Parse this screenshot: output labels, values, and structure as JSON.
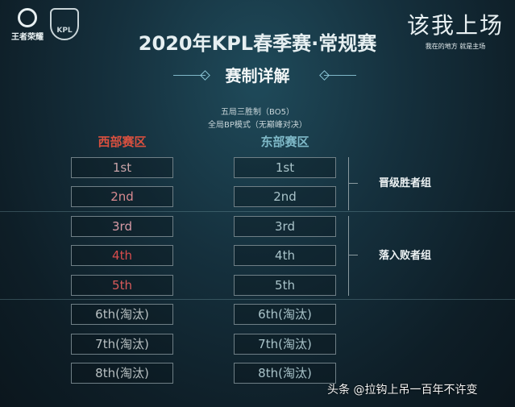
{
  "logos": {
    "honor_of_kings": "王者荣耀",
    "kpl": "KPL"
  },
  "slogan": {
    "main": "该我上场",
    "sub": "我在的地方 就是主场"
  },
  "title": "2020年KPL春季赛·常规赛",
  "subtitle": "赛制详解",
  "rules": [
    "五局三胜制（BO5）",
    "全局BP模式（无巅峰对决）"
  ],
  "west": {
    "header": "西部赛区",
    "color": "#d9503f",
    "ranks": [
      "1st",
      "2nd",
      "3rd",
      "4th",
      "5th",
      "6th(淘汰)",
      "7th(淘汰)",
      "8th(淘汰)"
    ],
    "rank_colors": [
      "#c8a4a8",
      "#d98a90",
      "#d79aa5",
      "#d84c4c",
      "#d85a5a",
      "#b8c0c2",
      "#b8c0c2",
      "#b8c0c2"
    ]
  },
  "east": {
    "header": "东部赛区",
    "color": "#7fb9c8",
    "ranks": [
      "1st",
      "2nd",
      "3rd",
      "4th",
      "5th",
      "6th(淘汰)",
      "7th(淘汰)",
      "8th(淘汰)"
    ],
    "rank_color": "#a9c3c9"
  },
  "groups": {
    "winners": "晋级胜者组",
    "losers": "落入败者组"
  },
  "watermark": "头条 @拉钩上吊一百年不许变"
}
